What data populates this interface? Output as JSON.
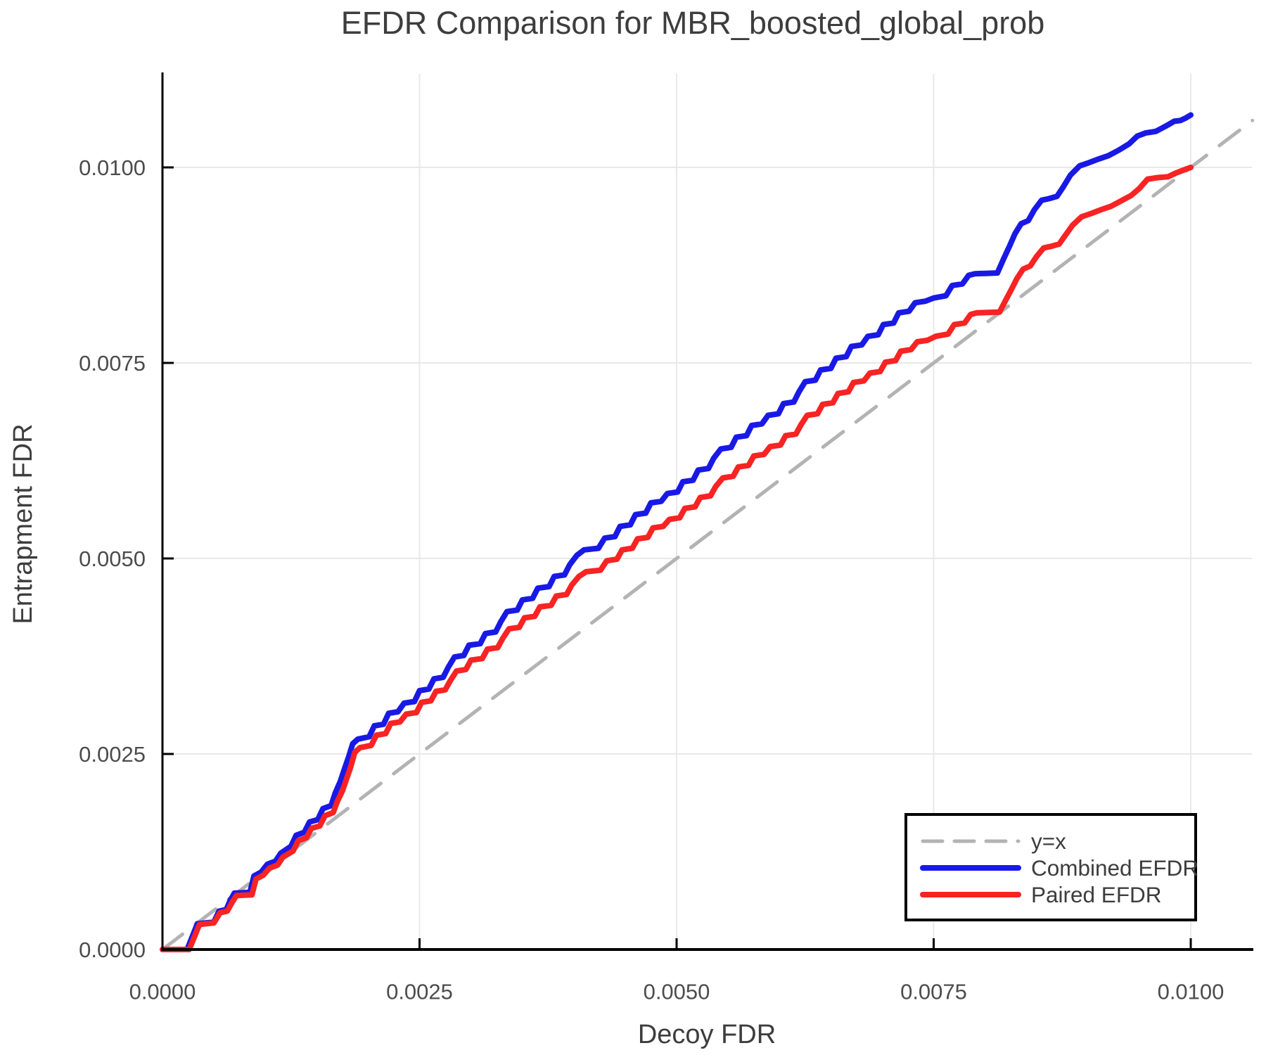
{
  "chart_data": {
    "type": "line",
    "title": "EFDR Comparison for MBR_boosted_global_prob",
    "xlabel": "Decoy FDR",
    "ylabel": "Entrapment FDR",
    "xlim": [
      0,
      0.0106
    ],
    "ylim": [
      0,
      0.0112
    ],
    "grid": true,
    "legend_position": "lower right",
    "point_unit_multiplier": 0.0001,
    "xticks": {
      "values": [
        0,
        25,
        50,
        75,
        100
      ],
      "labels": [
        "0.0000",
        "0.0025",
        "0.0050",
        "0.0075",
        "0.0100"
      ]
    },
    "yticks": {
      "values": [
        0,
        25,
        50,
        75,
        100
      ],
      "labels": [
        "0.0000",
        "0.0025",
        "0.0050",
        "0.0075",
        "0.0100"
      ]
    },
    "series": [
      {
        "name": "y=x",
        "style": "dashed",
        "color": "#b3b3b3",
        "width": 5,
        "points": [
          [
            0,
            0
          ],
          [
            106,
            106
          ]
        ]
      },
      {
        "name": "Combined EFDR",
        "style": "solid",
        "color": "#1919e6",
        "width": 8,
        "points": [
          [
            0,
            0
          ],
          [
            2.4,
            0
          ],
          [
            3.4,
            3.3
          ],
          [
            5.0,
            3.5
          ],
          [
            5.5,
            4.9
          ],
          [
            6.2,
            5.1
          ],
          [
            6.6,
            6.3
          ],
          [
            7.0,
            7.2
          ],
          [
            8.5,
            7.3
          ],
          [
            8.9,
            9.4
          ],
          [
            9.6,
            9.9
          ],
          [
            10.2,
            10.9
          ],
          [
            11.0,
            11.3
          ],
          [
            11.5,
            12.3
          ],
          [
            12.5,
            13.2
          ],
          [
            13.0,
            14.6
          ],
          [
            13.8,
            15.0
          ],
          [
            14.3,
            16.3
          ],
          [
            15.1,
            16.6
          ],
          [
            15.6,
            18.0
          ],
          [
            16.4,
            18.4
          ],
          [
            16.8,
            20.0
          ],
          [
            17.3,
            21.5
          ],
          [
            17.7,
            23.1
          ],
          [
            18.1,
            24.6
          ],
          [
            18.5,
            26.3
          ],
          [
            19.0,
            26.9
          ],
          [
            20.1,
            27.2
          ],
          [
            20.6,
            28.6
          ],
          [
            21.5,
            28.8
          ],
          [
            22.0,
            30.2
          ],
          [
            22.9,
            30.4
          ],
          [
            23.5,
            31.5
          ],
          [
            24.5,
            31.7
          ],
          [
            25.0,
            33.1
          ],
          [
            25.9,
            33.3
          ],
          [
            26.4,
            34.6
          ],
          [
            27.3,
            34.8
          ],
          [
            27.8,
            36.1
          ],
          [
            28.4,
            37.4
          ],
          [
            29.3,
            37.6
          ],
          [
            29.8,
            38.9
          ],
          [
            30.9,
            39.1
          ],
          [
            31.4,
            40.4
          ],
          [
            32.4,
            40.6
          ],
          [
            32.9,
            41.9
          ],
          [
            33.5,
            43.2
          ],
          [
            34.5,
            43.4
          ],
          [
            35.0,
            44.7
          ],
          [
            36.0,
            44.9
          ],
          [
            36.5,
            46.2
          ],
          [
            37.6,
            46.4
          ],
          [
            38.1,
            47.7
          ],
          [
            39.1,
            47.9
          ],
          [
            39.6,
            49.2
          ],
          [
            40.3,
            50.4
          ],
          [
            41.0,
            51.1
          ],
          [
            42.4,
            51.3
          ],
          [
            43.0,
            52.6
          ],
          [
            44.0,
            52.8
          ],
          [
            44.5,
            54.1
          ],
          [
            45.5,
            54.3
          ],
          [
            46.0,
            55.6
          ],
          [
            47.0,
            55.8
          ],
          [
            47.5,
            57.1
          ],
          [
            48.5,
            57.3
          ],
          [
            49.1,
            58.3
          ],
          [
            50.1,
            58.5
          ],
          [
            50.6,
            59.8
          ],
          [
            51.6,
            60.0
          ],
          [
            52.1,
            61.3
          ],
          [
            53.1,
            61.5
          ],
          [
            53.6,
            62.8
          ],
          [
            54.3,
            64.0
          ],
          [
            55.3,
            64.2
          ],
          [
            55.8,
            65.5
          ],
          [
            56.8,
            65.7
          ],
          [
            57.3,
            67.0
          ],
          [
            58.3,
            67.2
          ],
          [
            58.9,
            68.3
          ],
          [
            59.9,
            68.5
          ],
          [
            60.4,
            69.8
          ],
          [
            61.4,
            70.0
          ],
          [
            61.9,
            71.3
          ],
          [
            62.5,
            72.6
          ],
          [
            63.5,
            72.8
          ],
          [
            64.0,
            74.1
          ],
          [
            65.0,
            74.3
          ],
          [
            65.5,
            75.6
          ],
          [
            66.5,
            75.8
          ],
          [
            67.0,
            77.1
          ],
          [
            68.0,
            77.3
          ],
          [
            68.6,
            78.4
          ],
          [
            69.6,
            78.6
          ],
          [
            70.1,
            79.9
          ],
          [
            71.1,
            80.1
          ],
          [
            71.6,
            81.4
          ],
          [
            72.6,
            81.6
          ],
          [
            73.2,
            82.7
          ],
          [
            74.2,
            82.9
          ],
          [
            75.0,
            83.3
          ],
          [
            76.2,
            83.6
          ],
          [
            76.8,
            84.9
          ],
          [
            77.8,
            85.1
          ],
          [
            78.4,
            86.2
          ],
          [
            79.0,
            86.4
          ],
          [
            81.2,
            86.5
          ],
          [
            81.8,
            88.3
          ],
          [
            82.4,
            90.0
          ],
          [
            82.9,
            91.5
          ],
          [
            83.5,
            92.8
          ],
          [
            84.2,
            93.2
          ],
          [
            84.8,
            94.6
          ],
          [
            85.5,
            95.8
          ],
          [
            86.2,
            96.0
          ],
          [
            87.0,
            96.3
          ],
          [
            87.6,
            97.5
          ],
          [
            88.3,
            99.0
          ],
          [
            89.2,
            100.2
          ],
          [
            90.1,
            100.6
          ],
          [
            91.1,
            101.1
          ],
          [
            92.0,
            101.5
          ],
          [
            93.0,
            102.2
          ],
          [
            94.0,
            103.0
          ],
          [
            94.8,
            104.0
          ],
          [
            95.6,
            104.4
          ],
          [
            96.6,
            104.6
          ],
          [
            97.6,
            105.3
          ],
          [
            98.4,
            105.9
          ],
          [
            99.0,
            106.0
          ],
          [
            99.5,
            106.3
          ],
          [
            100.0,
            106.7
          ]
        ]
      },
      {
        "name": "Paired EFDR",
        "style": "solid",
        "color": "#f82323",
        "width": 8,
        "points": [
          [
            0,
            0
          ],
          [
            2.6,
            0
          ],
          [
            3.6,
            3.2
          ],
          [
            5.0,
            3.4
          ],
          [
            5.6,
            4.7
          ],
          [
            6.3,
            4.9
          ],
          [
            6.8,
            6.1
          ],
          [
            7.2,
            6.9
          ],
          [
            8.7,
            7.0
          ],
          [
            9.1,
            9.0
          ],
          [
            9.8,
            9.5
          ],
          [
            10.4,
            10.4
          ],
          [
            11.2,
            10.8
          ],
          [
            11.7,
            11.8
          ],
          [
            12.7,
            12.6
          ],
          [
            13.2,
            13.9
          ],
          [
            14.0,
            14.3
          ],
          [
            14.5,
            15.5
          ],
          [
            15.3,
            15.8
          ],
          [
            15.8,
            17.1
          ],
          [
            16.6,
            17.5
          ],
          [
            17.0,
            18.9
          ],
          [
            17.5,
            20.3
          ],
          [
            17.9,
            21.8
          ],
          [
            18.3,
            23.3
          ],
          [
            18.7,
            25.2
          ],
          [
            19.2,
            25.8
          ],
          [
            20.3,
            26.1
          ],
          [
            20.8,
            27.4
          ],
          [
            21.7,
            27.6
          ],
          [
            22.2,
            28.9
          ],
          [
            23.1,
            29.1
          ],
          [
            23.7,
            30.1
          ],
          [
            24.7,
            30.3
          ],
          [
            25.2,
            31.6
          ],
          [
            26.1,
            31.8
          ],
          [
            26.6,
            33.0
          ],
          [
            27.5,
            33.2
          ],
          [
            28.0,
            34.4
          ],
          [
            28.6,
            35.6
          ],
          [
            29.5,
            35.8
          ],
          [
            30.0,
            37.0
          ],
          [
            31.1,
            37.2
          ],
          [
            31.6,
            38.4
          ],
          [
            32.6,
            38.6
          ],
          [
            33.1,
            39.8
          ],
          [
            33.7,
            41.0
          ],
          [
            34.7,
            41.2
          ],
          [
            35.2,
            42.4
          ],
          [
            36.2,
            42.6
          ],
          [
            36.7,
            43.8
          ],
          [
            37.8,
            44.0
          ],
          [
            38.3,
            45.2
          ],
          [
            39.3,
            45.4
          ],
          [
            39.8,
            46.6
          ],
          [
            40.5,
            47.7
          ],
          [
            41.2,
            48.3
          ],
          [
            42.6,
            48.5
          ],
          [
            43.2,
            49.7
          ],
          [
            44.2,
            49.9
          ],
          [
            44.7,
            51.1
          ],
          [
            45.7,
            51.3
          ],
          [
            46.2,
            52.5
          ],
          [
            47.2,
            52.7
          ],
          [
            47.7,
            53.9
          ],
          [
            48.7,
            54.1
          ],
          [
            49.3,
            55.0
          ],
          [
            50.3,
            55.2
          ],
          [
            50.8,
            56.4
          ],
          [
            51.8,
            56.6
          ],
          [
            52.3,
            57.8
          ],
          [
            53.3,
            58.0
          ],
          [
            53.8,
            59.2
          ],
          [
            54.5,
            60.3
          ],
          [
            55.5,
            60.5
          ],
          [
            56.0,
            61.7
          ],
          [
            57.0,
            61.9
          ],
          [
            57.5,
            63.1
          ],
          [
            58.5,
            63.3
          ],
          [
            59.1,
            64.3
          ],
          [
            60.1,
            64.5
          ],
          [
            60.6,
            65.7
          ],
          [
            61.6,
            65.9
          ],
          [
            62.1,
            67.1
          ],
          [
            62.7,
            68.3
          ],
          [
            63.7,
            68.5
          ],
          [
            64.2,
            69.7
          ],
          [
            65.2,
            69.9
          ],
          [
            65.7,
            71.1
          ],
          [
            66.7,
            71.3
          ],
          [
            67.2,
            72.5
          ],
          [
            68.2,
            72.7
          ],
          [
            68.8,
            73.7
          ],
          [
            69.8,
            73.9
          ],
          [
            70.3,
            75.1
          ],
          [
            71.3,
            75.3
          ],
          [
            71.8,
            76.5
          ],
          [
            72.8,
            76.7
          ],
          [
            73.4,
            77.7
          ],
          [
            74.4,
            77.9
          ],
          [
            75.2,
            78.4
          ],
          [
            76.4,
            78.7
          ],
          [
            77.0,
            79.9
          ],
          [
            78.0,
            80.1
          ],
          [
            78.6,
            81.2
          ],
          [
            79.2,
            81.4
          ],
          [
            81.4,
            81.5
          ],
          [
            82.0,
            83.0
          ],
          [
            82.6,
            84.5
          ],
          [
            83.1,
            85.8
          ],
          [
            83.7,
            87.0
          ],
          [
            84.4,
            87.4
          ],
          [
            85.0,
            88.6
          ],
          [
            85.7,
            89.7
          ],
          [
            86.4,
            89.9
          ],
          [
            87.2,
            90.2
          ],
          [
            87.8,
            91.3
          ],
          [
            88.5,
            92.6
          ],
          [
            89.4,
            93.7
          ],
          [
            90.3,
            94.1
          ],
          [
            91.3,
            94.6
          ],
          [
            92.2,
            95.0
          ],
          [
            93.2,
            95.7
          ],
          [
            94.2,
            96.4
          ],
          [
            95.0,
            97.3
          ],
          [
            95.8,
            98.5
          ],
          [
            96.8,
            98.7
          ],
          [
            97.8,
            98.8
          ],
          [
            98.6,
            99.3
          ],
          [
            99.2,
            99.6
          ],
          [
            100.0,
            100.0
          ]
        ]
      }
    ]
  },
  "colors": {
    "background": "#ffffff",
    "grid": "#e8e8e8",
    "spine": "#000000",
    "title_text": "#3d3d3d",
    "tick_text": "#4c4c4c",
    "legend_border": "#000000",
    "legend_background": "#ffffff"
  }
}
